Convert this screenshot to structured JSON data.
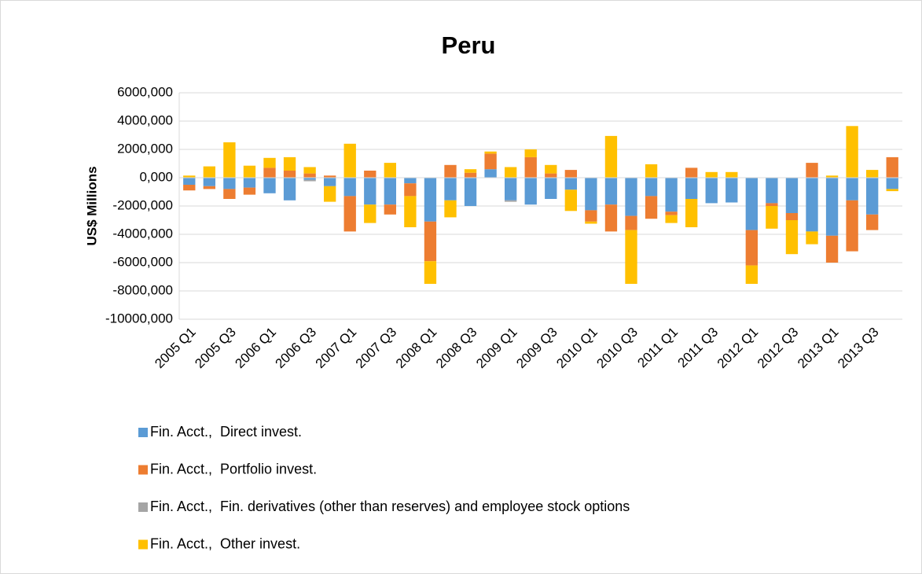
{
  "chart_data": {
    "type": "bar",
    "stacked": true,
    "title": "Peru",
    "ylabel": "US$ Millions",
    "categories": [
      "2005 Q1",
      null,
      "2005 Q3",
      null,
      "2006 Q1",
      null,
      "2006 Q3",
      null,
      "2007 Q1",
      null,
      "2007 Q3",
      null,
      "2008 Q1",
      null,
      "2008 Q3",
      null,
      "2009 Q1",
      null,
      "2009 Q3",
      null,
      "2010 Q1",
      null,
      "2010 Q3",
      null,
      "2011 Q1",
      null,
      "2011 Q3",
      null,
      "2012 Q1",
      null,
      "2012 Q3",
      null,
      "2013 Q1",
      null,
      "2013 Q3",
      null
    ],
    "series": [
      {
        "name": "Fin. Acct.,  Direct invest.",
        "color": "#5b9bd5",
        "values": [
          -500,
          -600,
          -800,
          -700,
          -1100,
          -1600,
          -150,
          -600,
          -1300,
          -1900,
          -1900,
          -400,
          -3100,
          -1600,
          -2000,
          600,
          -1600,
          -1900,
          -1500,
          -850,
          -2300,
          -1900,
          -2700,
          -1300,
          -2400,
          -1500,
          -1800,
          -1750,
          -3700,
          -1800,
          -2500,
          -3800,
          -4100,
          -1600,
          -2600,
          -800
        ]
      },
      {
        "name": "Fin. Acct.,  Portfolio invest.",
        "color": "#ed7d31",
        "values": [
          -400,
          -200,
          -700,
          -500,
          700,
          500,
          300,
          150,
          -2500,
          500,
          -700,
          -900,
          -2800,
          900,
          350,
          1100,
          0,
          1450,
          300,
          550,
          -800,
          -1900,
          -1000,
          -1600,
          -250,
          700,
          0,
          0,
          -2500,
          -200,
          -500,
          1050,
          -1900,
          -3600,
          -1100,
          1450
        ]
      },
      {
        "name": "Fin. Acct.,  Fin. derivatives (other than reserves) and employee stock options",
        "color": "#a5a5a5",
        "values": [
          0,
          0,
          0,
          0,
          0,
          0,
          -100,
          0,
          0,
          0,
          0,
          0,
          0,
          0,
          0,
          0,
          -100,
          0,
          0,
          0,
          0,
          0,
          0,
          0,
          0,
          0,
          0,
          0,
          0,
          0,
          0,
          0,
          0,
          0,
          0,
          0
        ]
      },
      {
        "name": "Fin. Acct.,  Other invest.",
        "color": "#ffc000",
        "values": [
          150,
          800,
          2500,
          850,
          700,
          950,
          450,
          -1100,
          2400,
          -1300,
          1050,
          -2200,
          -1600,
          -1200,
          250,
          150,
          750,
          550,
          600,
          -1500,
          -150,
          2950,
          -3800,
          950,
          -550,
          -2000,
          400,
          400,
          -1300,
          -1600,
          -2400,
          -900,
          150,
          3650,
          550,
          -150
        ]
      }
    ],
    "ylim": [
      -10000,
      6000
    ],
    "yticks": [
      {
        "value": -10000,
        "label": "-10000,000"
      },
      {
        "value": -8000,
        "label": "-8000,000"
      },
      {
        "value": -6000,
        "label": "-6000,000"
      },
      {
        "value": -4000,
        "label": "-4000,000"
      },
      {
        "value": -2000,
        "label": "-2000,000"
      },
      {
        "value": 0,
        "label": "0,000"
      },
      {
        "value": 2000,
        "label": "2000,000"
      },
      {
        "value": 4000,
        "label": "4000,000"
      },
      {
        "value": 6000,
        "label": "6000,000"
      }
    ],
    "grid": true,
    "legend": "bottom"
  }
}
